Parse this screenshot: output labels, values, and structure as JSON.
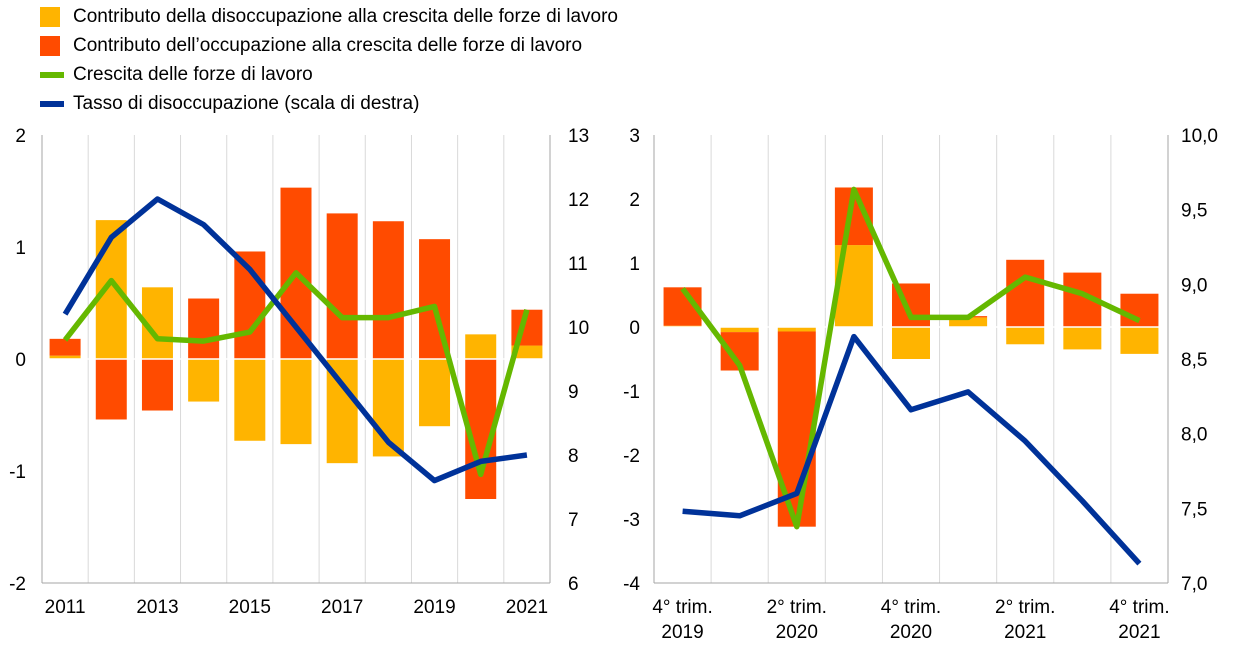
{
  "legend": [
    {
      "label": "Contributo della disoccupazione alla crescita delle forze di lavoro",
      "kind": "box",
      "color": "#ffb400"
    },
    {
      "label": "Contributo dell’occupazione alla crescita delle forze di lavoro",
      "kind": "box",
      "color": "#ff4b00"
    },
    {
      "label": "Crescita delle forze di lavoro",
      "kind": "line",
      "color": "#65b800"
    },
    {
      "label": "Tasso di disoccupazione (scala di destra)",
      "kind": "line",
      "color": "#003299"
    }
  ],
  "chart_data": [
    {
      "type": "bar",
      "stacked": true,
      "categories": [
        "2011",
        "2012",
        "2013",
        "2014",
        "2015",
        "2016",
        "2017",
        "2018",
        "2019",
        "2020",
        "2021"
      ],
      "x_tick_labels": [
        "2011",
        "",
        "2013",
        "",
        "2015",
        "",
        "2017",
        "",
        "2019",
        "",
        "2021"
      ],
      "ylim": [
        -2,
        2
      ],
      "y_ticks": [
        "-2",
        "-1",
        "0",
        "1",
        "2"
      ],
      "y2lim": [
        6,
        13
      ],
      "y2_ticks": [
        "6",
        "7",
        "8",
        "9",
        "10",
        "11",
        "12",
        "13"
      ],
      "grid": "vertical",
      "series": [
        {
          "name": "Contributo della disoccupazione alla crescita delle forze di lavoro",
          "kind": "bar",
          "color": "#ffb400",
          "values": [
            0.03,
            1.24,
            0.64,
            -0.38,
            -0.73,
            -0.76,
            -0.93,
            -0.87,
            -0.6,
            0.22,
            0.12
          ]
        },
        {
          "name": "Contributo dell’occupazione alla crescita delle forze di lavoro",
          "kind": "bar",
          "color": "#ff4b00",
          "values": [
            0.15,
            -0.54,
            -0.46,
            0.54,
            0.96,
            1.53,
            1.3,
            1.23,
            1.07,
            -1.25,
            0.32
          ]
        },
        {
          "name": "Crescita delle forze di lavoro",
          "kind": "line",
          "axis": "left",
          "color": "#65b800",
          "values": [
            0.17,
            0.7,
            0.18,
            0.16,
            0.24,
            0.77,
            0.37,
            0.37,
            0.47,
            -1.03,
            0.44
          ]
        },
        {
          "name": "Tasso di disoccupazione (scala di destra)",
          "kind": "line",
          "axis": "right",
          "color": "#003299",
          "values": [
            10.2,
            11.4,
            12.0,
            11.6,
            10.9,
            10.0,
            9.1,
            8.2,
            7.6,
            7.9,
            8.0
          ]
        }
      ]
    },
    {
      "type": "bar",
      "stacked": true,
      "categories": [
        "4° trim. 2019",
        "1° trim. 2020",
        "2° trim. 2020",
        "3° trim. 2020",
        "4° trim. 2020",
        "1° trim. 2021",
        "2° trim. 2021",
        "3° trim. 2021",
        "4° trim. 2021"
      ],
      "x_tick_labels": [
        [
          "4° trim.",
          "2019"
        ],
        [
          "",
          ""
        ],
        [
          "2° trim.",
          "2020"
        ],
        [
          "",
          ""
        ],
        [
          "4° trim.",
          "2020"
        ],
        [
          "",
          ""
        ],
        [
          "2° trim.",
          "2021"
        ],
        [
          "",
          ""
        ],
        [
          "4° trim.",
          "2021"
        ]
      ],
      "ylim": [
        -4,
        3
      ],
      "y_ticks": [
        "-4",
        "-3",
        "-2",
        "-1",
        "0",
        "1",
        "2",
        "3"
      ],
      "y2lim": [
        7.0,
        10.0
      ],
      "y2_ticks": [
        "7,0",
        "7,5",
        "8,0",
        "8,5",
        "9,0",
        "9,5",
        "10,0"
      ],
      "grid": "vertical",
      "series": [
        {
          "name": "Contributo della disoccupazione alla crescita delle forze di lavoro",
          "kind": "bar",
          "color": "#ffb400",
          "values": [
            0.02,
            -0.08,
            -0.07,
            1.28,
            -0.5,
            0.15,
            -0.27,
            -0.35,
            -0.42
          ]
        },
        {
          "name": "Contributo dell’occupazione alla crescita delle forze di lavoro",
          "kind": "bar",
          "color": "#ff4b00",
          "values": [
            0.6,
            -0.6,
            -3.05,
            0.9,
            0.68,
            0.02,
            1.05,
            0.85,
            0.52
          ]
        },
        {
          "name": "Crescita delle forze di lavoro",
          "kind": "line",
          "axis": "left",
          "color": "#65b800",
          "values": [
            0.6,
            -0.6,
            -3.12,
            2.15,
            0.15,
            0.15,
            0.78,
            0.52,
            0.1
          ]
        },
        {
          "name": "Tasso di disoccupazione (scala di destra)",
          "kind": "line",
          "axis": "right",
          "color": "#003299",
          "values": [
            7.48,
            7.45,
            7.6,
            8.65,
            8.16,
            8.28,
            7.95,
            7.55,
            7.13
          ]
        }
      ]
    }
  ]
}
